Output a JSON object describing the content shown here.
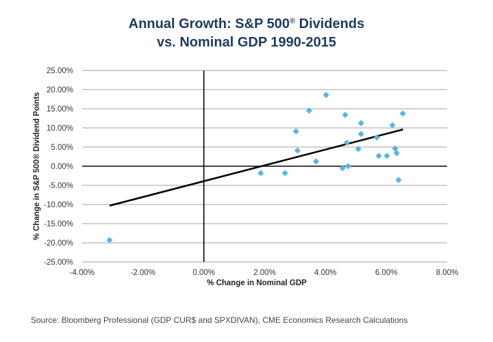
{
  "chart_data": {
    "type": "scatter",
    "title_line1": "Annual Growth: S&P 500® Dividends",
    "title_line2": "vs. Nominal GDP 1990-2015",
    "xlabel": "% Change in Nominal GDP",
    "ylabel": "% Change in S&P 500® Dividend Points",
    "xlim": [
      -4,
      8
    ],
    "ylim": [
      -25,
      25
    ],
    "x_ticks": [
      -4,
      -2,
      0,
      2,
      4,
      6,
      8
    ],
    "y_ticks": [
      25,
      20,
      15,
      10,
      5,
      0,
      -5,
      -10,
      -15,
      -20,
      -25
    ],
    "x_tick_labels": [
      "-4.00%",
      "-2.00%",
      "0.00%",
      "2.00%",
      "4.00%",
      "6.00%",
      "8.00%"
    ],
    "y_tick_labels": [
      "25.00%",
      "20.00%",
      "15.00%",
      "10.00%",
      "5.00%",
      "0.00%",
      "-5.00%",
      "-10.00%",
      "-15.00%",
      "-20.00%",
      "-25.00%"
    ],
    "grid": "horizontal",
    "legend": "none",
    "marker_color": "#5ab4e0",
    "trendline_color": "#000000",
    "series": [
      {
        "name": "Annual Growth",
        "points": [
          {
            "x": -3.1,
            "y": -19.3
          },
          {
            "x": 1.87,
            "y": -1.8
          },
          {
            "x": 2.67,
            "y": -1.8
          },
          {
            "x": 3.03,
            "y": 9.1
          },
          {
            "x": 3.08,
            "y": 4.1
          },
          {
            "x": 3.46,
            "y": 14.5
          },
          {
            "x": 3.69,
            "y": 1.25
          },
          {
            "x": 4.02,
            "y": 18.6
          },
          {
            "x": 4.56,
            "y": -0.5
          },
          {
            "x": 4.65,
            "y": 13.4
          },
          {
            "x": 4.7,
            "y": 6.1
          },
          {
            "x": 4.74,
            "y": 0.0
          },
          {
            "x": 5.08,
            "y": 4.5
          },
          {
            "x": 5.17,
            "y": 11.25
          },
          {
            "x": 5.17,
            "y": 8.4
          },
          {
            "x": 5.69,
            "y": 7.5
          },
          {
            "x": 5.75,
            "y": 2.7
          },
          {
            "x": 6.02,
            "y": 2.7
          },
          {
            "x": 6.2,
            "y": 10.7
          },
          {
            "x": 6.29,
            "y": 4.6
          },
          {
            "x": 6.34,
            "y": 3.4
          },
          {
            "x": 6.4,
            "y": -3.6
          },
          {
            "x": 6.54,
            "y": 13.75
          }
        ]
      }
    ],
    "trendline": {
      "x1": -3.1,
      "y1": -10.3,
      "x2": 6.55,
      "y2": 9.6
    }
  },
  "source": "Source: Bloomberg Professional (GDP CUR$ and SPXDIVAN), CME Economics Research Calculations"
}
